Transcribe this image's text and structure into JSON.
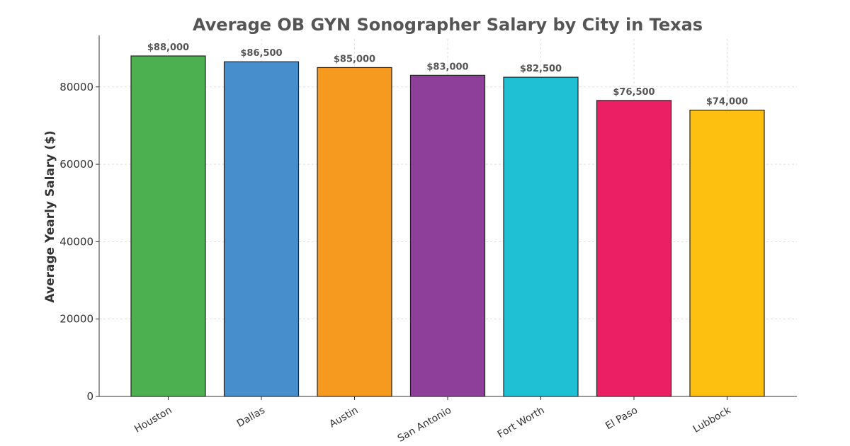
{
  "chart_data": {
    "type": "bar",
    "title": "Average OB GYN Sonographer Salary by City in Texas",
    "xlabel": "",
    "ylabel": "Average Yearly Salary ($)",
    "categories": [
      "Houston",
      "Dallas",
      "Austin",
      "San Antonio",
      "Fort Worth",
      "El Paso",
      "Lubbock"
    ],
    "values": [
      88000,
      86500,
      85000,
      83000,
      82500,
      76500,
      74000
    ],
    "value_labels": [
      "$88,000",
      "$86,500",
      "$85,000",
      "$83,000",
      "$82,500",
      "$76,500",
      "$74,000"
    ],
    "colors": [
      "#4caf50",
      "#478fcc",
      "#f59a1e",
      "#8e3f99",
      "#1fbfd4",
      "#eb1f63",
      "#fdc011"
    ],
    "ylim": [
      0,
      92400
    ],
    "yticks": [
      0,
      20000,
      40000,
      60000,
      80000
    ],
    "ytick_labels": [
      "0",
      "20000",
      "40000",
      "60000",
      "80000"
    ],
    "grid": true,
    "legend": "none"
  }
}
